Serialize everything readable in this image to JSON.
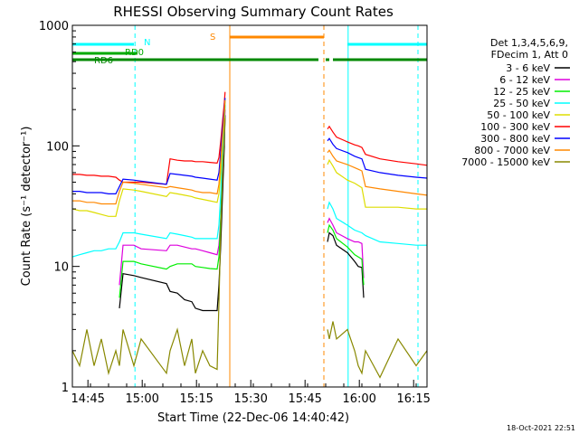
{
  "chart_data": {
    "type": "line",
    "title": "RHESSI Observing Summary Count Rates",
    "xlabel": "Start Time (22-Dec-06 14:40:42)",
    "ylabel": "Count Rate (s⁻¹ detector⁻¹)",
    "y_scale": "log",
    "ylim": [
      1,
      1000
    ],
    "y_ticks": [
      1,
      10,
      100,
      1000
    ],
    "y_tick_labels": [
      "1",
      "10",
      "100",
      "1000"
    ],
    "x_unit": "minutes after 14:40:42",
    "xlim": [
      0,
      98
    ],
    "x_ticks": [
      4.3,
      19.3,
      34.3,
      49.3,
      64.3,
      79.3,
      94.3
    ],
    "x_tick_labels": [
      "14:45",
      "15:00",
      "15:15",
      "15:30",
      "15:45",
      "16:00",
      "16:15"
    ],
    "timestamp": "18-Oct-2021 22:51",
    "legend": {
      "placement": "right",
      "header_lines": [
        "Det 1,3,4,5,6,9,",
        "FDecim 1, Att 0"
      ]
    },
    "series": [
      {
        "name": "3 - 6 keV",
        "color": "#000000",
        "x": [
          0,
          12,
          13,
          14,
          17,
          19,
          26,
          27,
          29,
          31,
          33,
          34,
          36,
          38,
          40,
          40.5,
          41,
          41.5,
          42,
          42.2,
          42.5,
          70,
          70.5,
          71,
          72,
          73,
          76,
          78,
          79,
          80,
          80.5,
          81
        ],
        "y": [
          null,
          null,
          4.5,
          8.7,
          8.4,
          8.1,
          7.2,
          6.2,
          6.0,
          5.3,
          5.1,
          4.5,
          4.3,
          4.3,
          4.3,
          7,
          15,
          40,
          100,
          180,
          null,
          null,
          16,
          19,
          18,
          15,
          13,
          11,
          10,
          9.8,
          5.5,
          null
        ]
      },
      {
        "name": "6 - 12 keV",
        "color": "#dd00dd",
        "x": [
          0,
          12,
          13,
          14,
          17,
          19,
          26,
          27,
          29,
          31,
          33,
          34,
          36,
          38,
          40,
          40.5,
          41,
          41.5,
          42,
          42.2,
          42.5,
          70,
          70.5,
          71,
          72,
          73,
          76,
          78,
          79,
          80,
          80.5,
          81
        ],
        "y": [
          null,
          null,
          7,
          15,
          15,
          14,
          13.5,
          15,
          15,
          14.5,
          14,
          14,
          13.5,
          13,
          12.5,
          15,
          25,
          60,
          120,
          200,
          null,
          null,
          23,
          25,
          22,
          19,
          17,
          16,
          16,
          15.5,
          8,
          null
        ]
      },
      {
        "name": "12 - 25 keV",
        "color": "#00ee00",
        "x": [
          0,
          12,
          13,
          14,
          17,
          19,
          26,
          27,
          29,
          31,
          33,
          34,
          36,
          38,
          40,
          40.5,
          41,
          41.5,
          42,
          42.2,
          42.5,
          70,
          70.5,
          71,
          72,
          73,
          76,
          78,
          79,
          80,
          80.5,
          81
        ],
        "y": [
          null,
          null,
          5.5,
          11,
          11,
          10.5,
          9.5,
          10,
          10.5,
          10.5,
          10.5,
          10,
          9.8,
          9.6,
          9.5,
          12,
          25,
          70,
          150,
          220,
          null,
          null,
          19,
          22,
          20,
          17,
          14.5,
          12.5,
          12,
          11.5,
          7,
          null
        ]
      },
      {
        "name": "25 - 50 keV",
        "color": "#00ffff",
        "x": [
          0,
          2,
          4,
          6,
          8,
          10,
          12,
          13,
          14,
          17,
          19,
          26,
          27,
          29,
          31,
          33,
          34,
          36,
          38,
          40,
          40.5,
          41,
          41.5,
          42,
          42.2,
          42.5,
          70,
          70.5,
          71,
          72,
          73,
          76,
          78,
          79,
          80,
          81,
          85,
          90,
          95,
          98
        ],
        "y": [
          12,
          12.5,
          13,
          13.5,
          13.5,
          14,
          14,
          16,
          19,
          19,
          18.5,
          17,
          19,
          18.5,
          18,
          17.5,
          17,
          17,
          17,
          17,
          22,
          40,
          90,
          170,
          230,
          null,
          null,
          30,
          34,
          30,
          25,
          22,
          20,
          19.5,
          19,
          18,
          16,
          15.5,
          15,
          15
        ]
      },
      {
        "name": "50 - 100 keV",
        "color": "#dddd00",
        "x": [
          0,
          2,
          4,
          6,
          8,
          10,
          12,
          13,
          14,
          17,
          19,
          26,
          27,
          29,
          31,
          33,
          34,
          36,
          38,
          40,
          40.5,
          41,
          41.5,
          42,
          42.2,
          42.5,
          70,
          70.5,
          71,
          72,
          73,
          76,
          78,
          79,
          80,
          81,
          85,
          90,
          95,
          98
        ],
        "y": [
          30,
          29,
          29,
          28,
          27,
          26,
          26,
          35,
          44,
          43,
          42,
          38,
          41,
          40,
          39,
          38,
          37,
          36,
          35,
          34,
          40,
          60,
          110,
          180,
          240,
          null,
          null,
          70,
          76,
          68,
          60,
          52,
          49,
          47,
          45,
          31,
          31,
          31,
          30,
          30
        ]
      },
      {
        "name": "100 - 300 keV",
        "color": "#ff0000",
        "x": [
          0,
          2,
          4,
          6,
          8,
          10,
          12,
          13,
          14,
          17,
          19,
          26,
          27,
          29,
          31,
          33,
          34,
          36,
          38,
          40,
          40.5,
          41,
          41.5,
          42,
          42.2,
          42.5,
          70,
          70.5,
          71,
          72,
          73,
          76,
          78,
          79,
          80,
          81,
          85,
          90,
          95,
          98
        ],
        "y": [
          58,
          58,
          57,
          57,
          56,
          56,
          55,
          52,
          50,
          50,
          50,
          48,
          78,
          76,
          75,
          75,
          74,
          74,
          73,
          72,
          80,
          110,
          160,
          230,
          280,
          null,
          null,
          138,
          145,
          130,
          118,
          108,
          102,
          100,
          97,
          85,
          78,
          74,
          71,
          69
        ]
      },
      {
        "name": "300 - 800 keV",
        "color": "#0000ff",
        "x": [
          0,
          2,
          4,
          6,
          8,
          10,
          12,
          13,
          14,
          17,
          19,
          26,
          27,
          29,
          31,
          33,
          34,
          36,
          38,
          40,
          40.5,
          41,
          41.5,
          42,
          42.2,
          42.5,
          70,
          70.5,
          71,
          72,
          73,
          76,
          78,
          79,
          80,
          81,
          85,
          90,
          95,
          98
        ],
        "y": [
          42,
          42,
          41,
          41,
          41,
          40,
          40,
          46,
          53,
          52,
          51,
          48,
          59,
          58,
          57,
          56,
          55,
          54,
          53,
          52,
          60,
          90,
          140,
          200,
          250,
          null,
          null,
          110,
          115,
          103,
          95,
          88,
          82,
          80,
          78,
          64,
          60,
          57,
          55,
          54
        ]
      },
      {
        "name": "800 - 7000 keV",
        "color": "#ff8800",
        "x": [
          0,
          2,
          4,
          6,
          8,
          10,
          12,
          13,
          14,
          17,
          19,
          26,
          27,
          29,
          31,
          33,
          34,
          36,
          38,
          40,
          40.5,
          41,
          41.5,
          42,
          42.2,
          42.5,
          70,
          70.5,
          71,
          72,
          73,
          76,
          78,
          79,
          80,
          81,
          85,
          90,
          95,
          98
        ],
        "y": [
          35,
          35,
          34,
          34,
          33,
          33,
          33,
          42,
          50,
          49,
          48,
          45,
          46,
          45,
          44,
          43,
          42,
          41,
          41,
          40,
          48,
          75,
          120,
          185,
          240,
          null,
          null,
          88,
          92,
          82,
          75,
          70,
          66,
          64,
          62,
          46,
          44,
          42,
          40,
          39
        ]
      },
      {
        "name": "7000 - 15000 keV",
        "color": "#888800",
        "x": [
          0,
          2,
          4,
          6,
          8,
          10,
          12,
          13,
          14,
          17,
          19,
          26,
          27,
          29,
          31,
          33,
          34,
          36,
          38,
          40,
          40.5,
          41,
          41.5,
          42,
          42.2,
          42.5,
          70,
          70.5,
          71,
          72,
          73,
          76,
          78,
          79,
          80,
          81,
          85,
          90,
          95,
          98
        ],
        "y": [
          2,
          1.5,
          3,
          1.5,
          2.5,
          1.3,
          2,
          1.5,
          3,
          1.5,
          2.5,
          1.3,
          2,
          3,
          1.5,
          2.5,
          1.3,
          2,
          1.5,
          1.4,
          5,
          20,
          60,
          120,
          170,
          null,
          null,
          3,
          2.5,
          3.5,
          2.5,
          3,
          2,
          1.5,
          1.3,
          2,
          1.2,
          2.5,
          1.5,
          2
        ]
      }
    ],
    "state_bars": [
      {
        "label": "N",
        "color": "#00ffff",
        "segments": [
          [
            0,
            17
          ],
          [
            76,
            98
          ]
        ]
      },
      {
        "label": "RD0",
        "color": "#00aa00",
        "segments": [
          [
            0,
            18
          ]
        ]
      },
      {
        "label": "RD6",
        "color": "#008800",
        "segments": [
          [
            0,
            37
          ],
          [
            27,
            68
          ],
          [
            70,
            71
          ],
          [
            72,
            98
          ]
        ]
      },
      {
        "label": "S",
        "color": "#ff8800",
        "segments": [
          [
            43.5,
            69.5
          ]
        ]
      }
    ],
    "markers": [
      {
        "x": 0,
        "color": "#00ffff",
        "style": "solid"
      },
      {
        "x": 17.3,
        "color": "#00ffff",
        "style": "dashed"
      },
      {
        "x": 43.5,
        "color": "#ff8800",
        "style": "solid"
      },
      {
        "x": 69.5,
        "color": "#ff8800",
        "style": "dashed"
      },
      {
        "x": 76.2,
        "color": "#00ffff",
        "style": "solid"
      },
      {
        "x": 95.5,
        "color": "#00ffff",
        "style": "dashed"
      }
    ]
  }
}
